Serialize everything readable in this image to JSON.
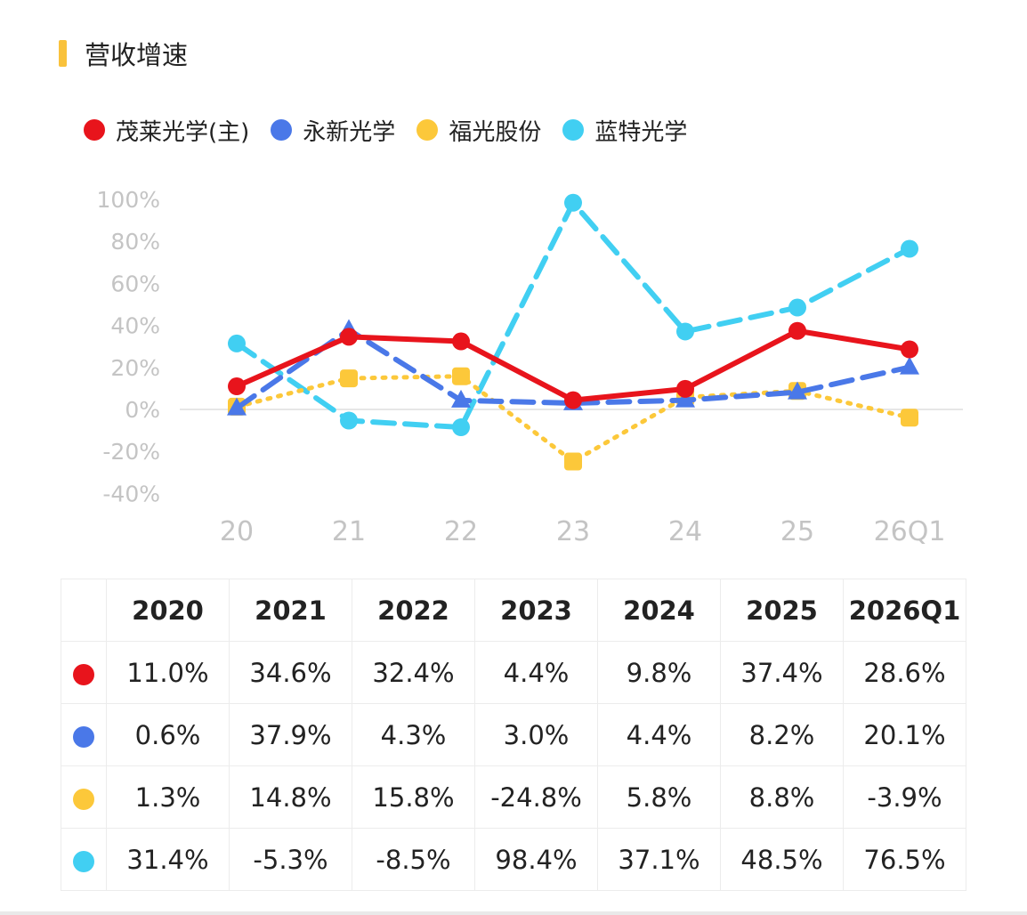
{
  "section": {
    "title": "营收增速",
    "accent_color": "#f9c23c"
  },
  "chart_data": {
    "type": "line",
    "categories": [
      "20",
      "21",
      "22",
      "23",
      "24",
      "25",
      "26Q1"
    ],
    "ylim": [
      -40,
      100
    ],
    "yticks": [
      -40,
      -20,
      0,
      20,
      40,
      60,
      80,
      100
    ],
    "ytick_labels": [
      "-40%",
      "-20%",
      "0%",
      "20%",
      "40%",
      "60%",
      "80%",
      "100%"
    ],
    "legend_position": "top-left",
    "grid": false,
    "series": [
      {
        "name": "茂莱光学(主)",
        "color": "#e8141c",
        "marker": "circle",
        "line_style": "solid",
        "values": [
          11.0,
          34.6,
          32.4,
          4.4,
          9.8,
          37.4,
          28.6
        ]
      },
      {
        "name": "永新光学",
        "color": "#4a78e8",
        "marker": "triangle",
        "line_style": "dashed",
        "values": [
          0.6,
          37.9,
          4.3,
          3.0,
          4.4,
          8.2,
          20.1
        ]
      },
      {
        "name": "福光股份",
        "color": "#fcc83a",
        "marker": "square",
        "line_style": "dotted",
        "values": [
          1.3,
          14.8,
          15.8,
          -24.8,
          5.8,
          8.8,
          -3.9
        ]
      },
      {
        "name": "蓝特光学",
        "color": "#41cff2",
        "marker": "circle",
        "line_style": "dashed",
        "values": [
          31.4,
          -5.3,
          -8.5,
          98.4,
          37.1,
          48.5,
          76.5
        ]
      }
    ]
  },
  "table": {
    "headers": [
      "2020",
      "2021",
      "2022",
      "2023",
      "2024",
      "2025",
      "2026Q1"
    ],
    "rows": [
      {
        "color": "#e8141c",
        "cells": [
          "11.0%",
          "34.6%",
          "32.4%",
          "4.4%",
          "9.8%",
          "37.4%",
          "28.6%"
        ]
      },
      {
        "color": "#4a78e8",
        "cells": [
          "0.6%",
          "37.9%",
          "4.3%",
          "3.0%",
          "4.4%",
          "8.2%",
          "20.1%"
        ]
      },
      {
        "color": "#fcc83a",
        "cells": [
          "1.3%",
          "14.8%",
          "15.8%",
          "-24.8%",
          "5.8%",
          "8.8%",
          "-3.9%"
        ]
      },
      {
        "color": "#41cff2",
        "cells": [
          "31.4%",
          "-5.3%",
          "-8.5%",
          "98.4%",
          "37.1%",
          "48.5%",
          "76.5%"
        ]
      }
    ]
  }
}
